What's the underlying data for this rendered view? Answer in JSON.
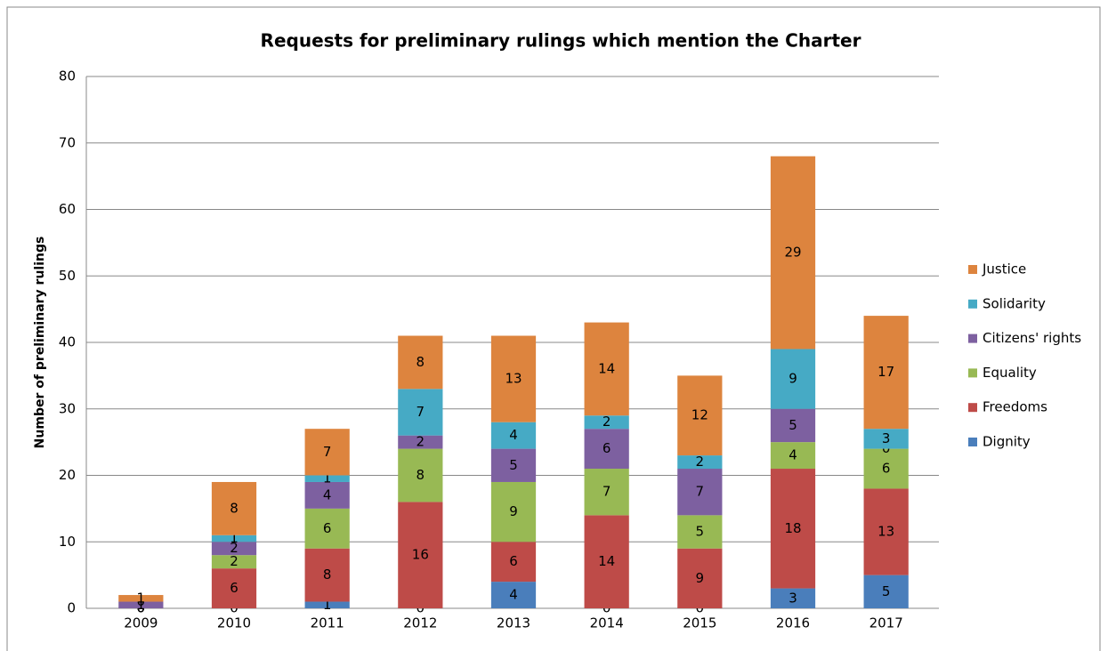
{
  "chart_data": {
    "type": "stacked_bar",
    "title": "Requests for preliminary rulings which mention the Charter",
    "y_label": "Number of preliminary rulings",
    "categories": [
      "2009",
      "2010",
      "2011",
      "2012",
      "2013",
      "2014",
      "2015",
      "2016",
      "2017"
    ],
    "series": [
      {
        "name": "Dignity",
        "color": "#4a7ebb",
        "values": [
          0,
          0,
          1,
          0,
          4,
          0,
          0,
          3,
          5
        ]
      },
      {
        "name": "Freedoms",
        "color": "#be4b48",
        "values": [
          0,
          6,
          8,
          16,
          6,
          14,
          9,
          18,
          13
        ]
      },
      {
        "name": "Equality",
        "color": "#98b954",
        "values": [
          0,
          2,
          6,
          8,
          9,
          7,
          5,
          4,
          6
        ]
      },
      {
        "name": "Citizens' rights",
        "color": "#7d60a0",
        "values": [
          1,
          2,
          4,
          2,
          5,
          6,
          7,
          5,
          0
        ]
      },
      {
        "name": "Solidarity",
        "color": "#46aac5",
        "values": [
          0,
          1,
          1,
          7,
          4,
          2,
          2,
          9,
          3
        ]
      },
      {
        "name": "Justice",
        "color": "#dd843e",
        "values": [
          1,
          8,
          7,
          8,
          13,
          14,
          12,
          29,
          17
        ]
      }
    ],
    "ylim": [
      0,
      80
    ],
    "yticks": [
      0,
      10,
      20,
      30,
      40,
      50,
      60,
      70,
      80
    ],
    "grid": true,
    "legend": "right"
  }
}
